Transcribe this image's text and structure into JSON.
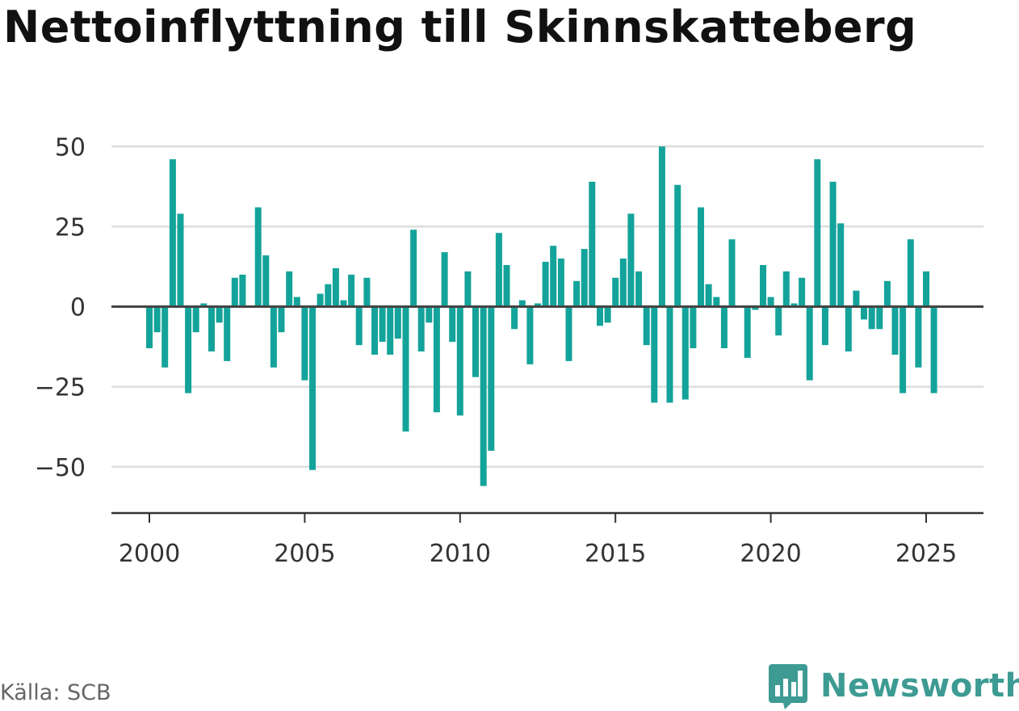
{
  "title": "Nettoinflyttning till Skinnskatteberg",
  "source": "Källa: SCB",
  "brand": {
    "name": "Newsworthy",
    "icon": "newsworthy-logo-icon",
    "color": "#3d9b93"
  },
  "colors": {
    "bar": "#14a39a",
    "zero_line": "#444444",
    "grid": "#dddddd",
    "axis": "#333333"
  },
  "chart_data": {
    "type": "bar",
    "title": "Nettoinflyttning till Skinnskatteberg",
    "xlabel": "",
    "ylabel": "",
    "frequency": "quarterly",
    "x_start": "2000 Q1",
    "x_end": "2025 Q2",
    "xlim": [
      1999.75,
      2027.25
    ],
    "ylim": [
      -65,
      55
    ],
    "x_ticks": [
      2000,
      2005,
      2010,
      2015,
      2020,
      2025
    ],
    "y_ticks": [
      -50,
      -25,
      0,
      25,
      50
    ],
    "y_tick_labels": [
      "−50",
      "−25",
      "0",
      "25",
      "50"
    ],
    "grid": true,
    "series": [
      {
        "values": [
          -13,
          -8,
          -19,
          46,
          29,
          -27,
          -8,
          1,
          -14,
          -5,
          -17,
          9,
          10,
          0,
          31,
          16,
          -19,
          -8,
          11,
          3,
          -23,
          -51,
          4,
          7,
          12,
          2,
          10,
          -12,
          9,
          -15,
          -11,
          -15,
          -10,
          -39,
          24,
          -14,
          -5,
          -33,
          17,
          -11,
          -34,
          11,
          -22,
          -56,
          -45,
          23,
          13,
          -7,
          2,
          -18,
          1,
          14,
          19,
          15,
          -17,
          8,
          18,
          39,
          -6,
          -5,
          9,
          15,
          29,
          11,
          -12,
          -30,
          50,
          -30,
          38,
          -29,
          -13,
          31,
          7,
          3,
          -13,
          21,
          0,
          -16,
          -1,
          13,
          3,
          -9,
          11,
          1,
          9,
          -23,
          46,
          -12,
          39,
          26,
          -14,
          5,
          -4,
          -7,
          -7,
          8,
          -15,
          -27,
          21,
          -19,
          11,
          -27
        ]
      }
    ]
  }
}
